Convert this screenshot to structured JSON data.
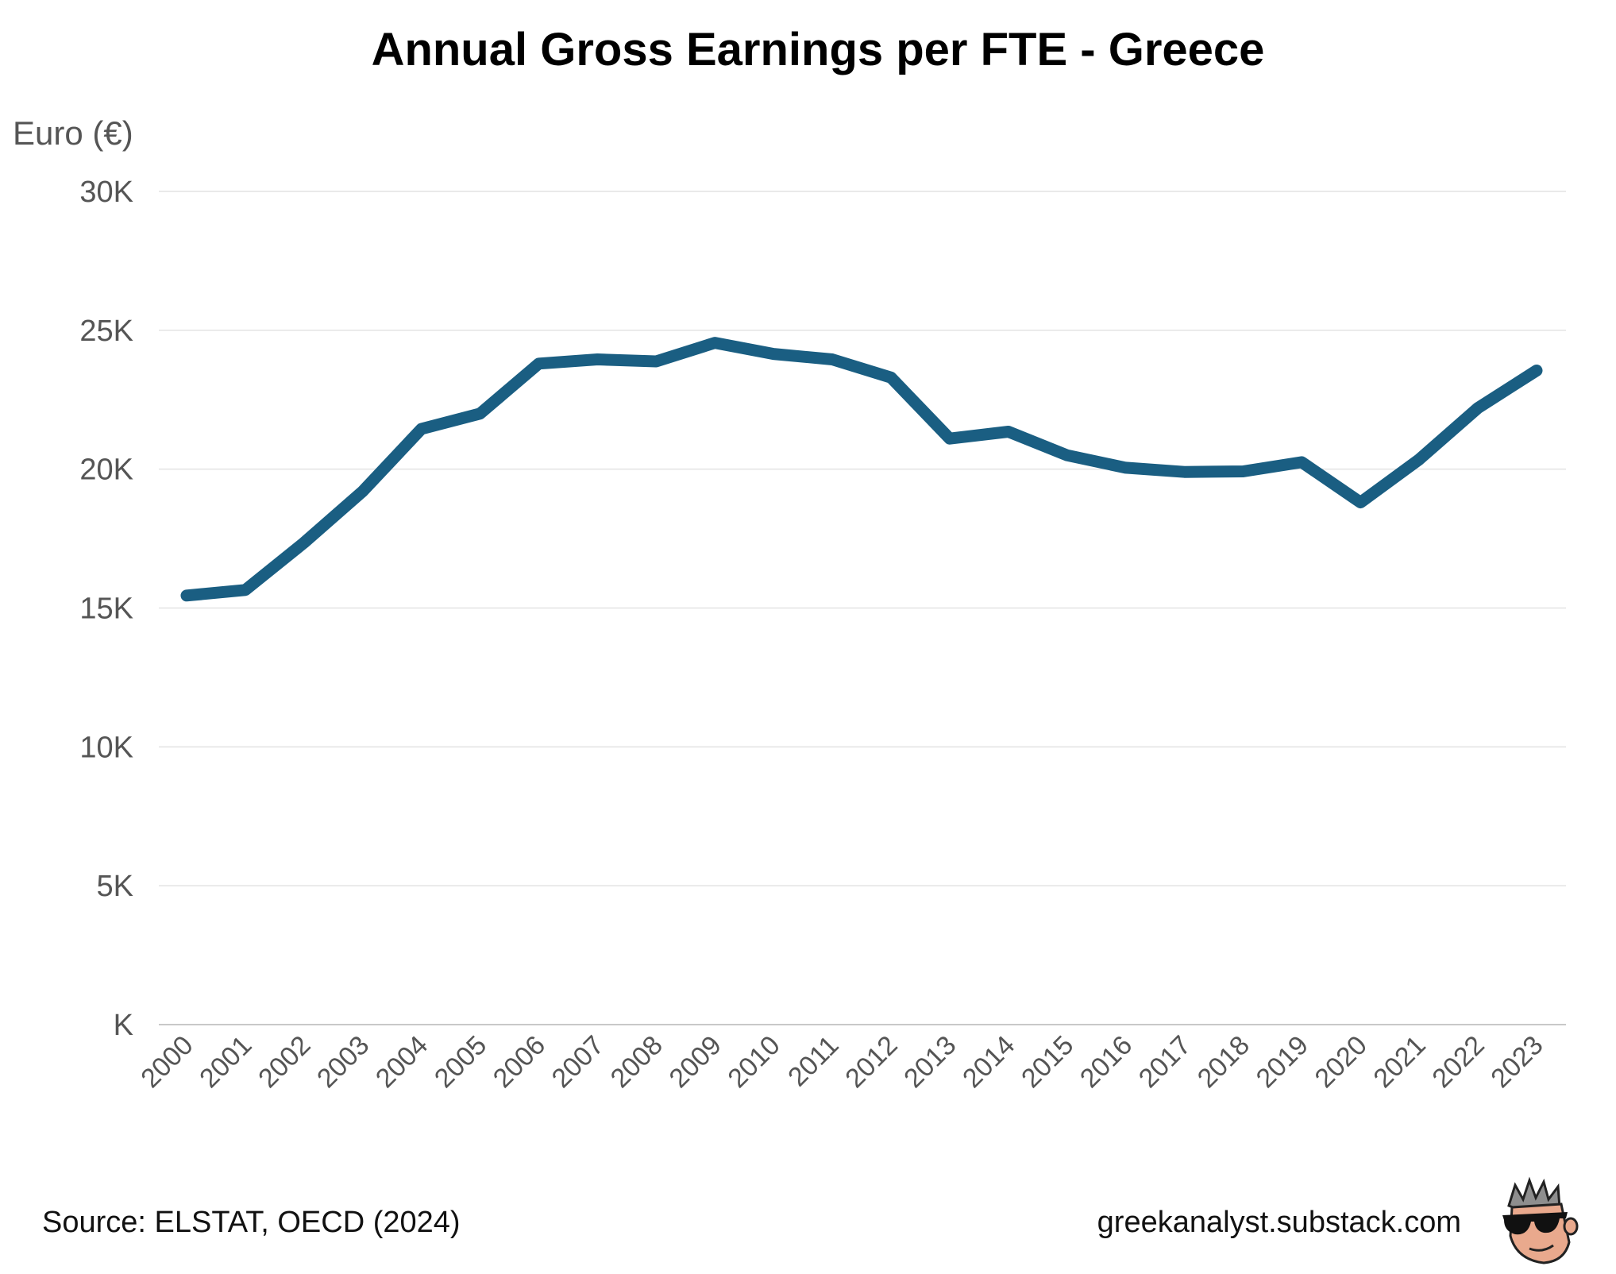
{
  "chart_data": {
    "type": "line",
    "title": "Annual Gross Earnings per FTE - Greece",
    "ylabel": "Euro (€)",
    "xlabel": "",
    "ylim": [
      0,
      30000
    ],
    "yticks": [
      0,
      5000,
      10000,
      15000,
      20000,
      25000,
      30000
    ],
    "ytick_labels": [
      "K",
      "5K",
      "10K",
      "15K",
      "20K",
      "25K",
      "30K"
    ],
    "grid": true,
    "legend": "none",
    "categories": [
      "2000",
      "2001",
      "2002",
      "2003",
      "2004",
      "2005",
      "2006",
      "2007",
      "2008",
      "2009",
      "2010",
      "2011",
      "2012",
      "2013",
      "2014",
      "2015",
      "2016",
      "2017",
      "2018",
      "2019",
      "2020",
      "2021",
      "2022",
      "2023"
    ],
    "series": [
      {
        "color": "#1a5e82",
        "values": [
          15450,
          15650,
          17350,
          19200,
          21450,
          22000,
          23800,
          23950,
          23880,
          24550,
          24150,
          23950,
          23300,
          21100,
          21350,
          20500,
          20050,
          19900,
          19920,
          20250,
          18800,
          20350,
          22200,
          23550
        ]
      }
    ]
  },
  "footer": {
    "source": "Source: ELSTAT, OECD (2024)",
    "site": "greekanalyst.substack.com",
    "logo_icon": "analyst-mascot-icon"
  }
}
